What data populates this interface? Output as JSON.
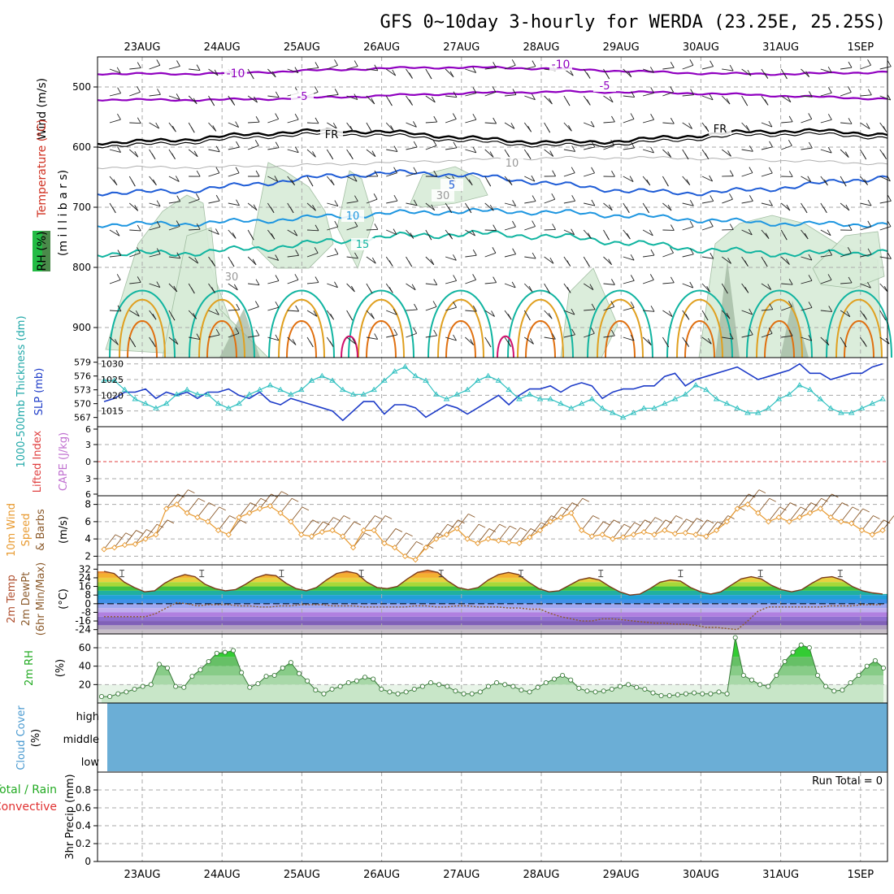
{
  "title": "GFS 0~10day 3-hourly for WERDA (23.25E, 25.25S)",
  "date_labels": [
    "23AUG",
    "24AUG",
    "25AUG",
    "26AUG",
    "27AUG",
    "28AUG",
    "29AUG",
    "30AUG",
    "31AUG",
    "1SEP"
  ],
  "colors": {
    "purple": "#9000c0",
    "black": "#000000",
    "blue": "#1e5cd6",
    "lightblue": "#1e96e0",
    "teal": "#10b4a0",
    "orange": "#e0a020",
    "darkorange": "#e07010",
    "magenta": "#d0106c",
    "rhfill": "#d8ecd8",
    "slp": "#1e3cc8",
    "thick": "#30c0c0",
    "wind10": "#e89a30",
    "cloud": "#6baed6",
    "grid": "#aaaaaa"
  },
  "chart_data": [
    {
      "panel": "upper-air",
      "type": "contour",
      "ylabel_parts": [
        "Wind (m/s)",
        "Temperature (°C)",
        "RH (%)"
      ],
      "ylabel_units": "(m i l l i b a r s)",
      "y_ticks": [
        500,
        600,
        700,
        800,
        900
      ],
      "ylim": [
        450,
        950
      ],
      "temperature_labels": [
        "-10",
        "-5",
        "FR",
        "5",
        "10",
        "15"
      ],
      "rh_labels": [
        "10",
        "30"
      ]
    },
    {
      "panel": "slp-thickness",
      "type": "line",
      "ylabel_left": "1000-500mb Thickness (dm)",
      "ylabel_right": "SLP (mb)",
      "left_ticks": [
        567,
        570,
        573,
        576,
        579
      ],
      "right_ticks": [
        1015,
        1020,
        1025,
        1030
      ],
      "series": [
        {
          "name": "SLP (mb)",
          "values": [
            1018,
            1019,
            1021,
            1021,
            1022,
            1019,
            1021,
            1020,
            1021,
            1019,
            1021,
            1021,
            1022,
            1020,
            1019,
            1021,
            1018,
            1017,
            1019,
            1018,
            1017,
            1016,
            1015,
            1012,
            1015,
            1018,
            1018,
            1014,
            1017,
            1017,
            1016,
            1013,
            1015,
            1017,
            1016,
            1014,
            1016,
            1018,
            1020,
            1017,
            1020,
            1022,
            1022,
            1023,
            1021,
            1023,
            1024,
            1023,
            1019,
            1021,
            1022,
            1022,
            1023,
            1023,
            1026,
            1027,
            1023,
            1025,
            1026,
            1027,
            1028,
            1029,
            1027,
            1025,
            1026,
            1027,
            1028,
            1030,
            1027,
            1027,
            1025,
            1026,
            1027,
            1027,
            1029,
            1030
          ]
        },
        {
          "name": "1000-500mb Thickness (dm)",
          "values": [
            575,
            575,
            573,
            571,
            570,
            569,
            570,
            572,
            573,
            572,
            572,
            570,
            569,
            570,
            572,
            573,
            574,
            573,
            572,
            573,
            575,
            576,
            575,
            573,
            572,
            572,
            573,
            575,
            577,
            578,
            576,
            575,
            572,
            571,
            572,
            573,
            575,
            576,
            575,
            573,
            571,
            572,
            571,
            571,
            570,
            569,
            570,
            571,
            569,
            568,
            567,
            568,
            569,
            569,
            570,
            571,
            572,
            574,
            573,
            571,
            570,
            569,
            568,
            568,
            569,
            571,
            572,
            574,
            573,
            571,
            569,
            568,
            568,
            569,
            570,
            571
          ]
        }
      ]
    },
    {
      "panel": "lifted-index-cape",
      "type": "line",
      "ylabel_parts": [
        "Lifted Index",
        "CAPE (J/kg)"
      ],
      "y_ticks": [
        "6",
        "3",
        "0",
        "3",
        "6"
      ]
    },
    {
      "panel": "wind10m",
      "type": "line",
      "ylabel_parts": [
        "10m Wind",
        "Speed",
        "& Barbs"
      ],
      "ylabel_units": "(m/s)",
      "y_ticks": [
        2,
        4,
        6,
        8
      ],
      "ylim": [
        1,
        9
      ],
      "series": [
        {
          "name": "Speed",
          "values": [
            2.8,
            3.0,
            3.3,
            3.4,
            4.0,
            4.5,
            7.5,
            8.0,
            7.0,
            6.5,
            6.0,
            5.0,
            4.5,
            6.5,
            7.0,
            7.5,
            7.8,
            7.0,
            6.0,
            4.5,
            4.3,
            4.8,
            5.0,
            4.3,
            3.0,
            5.0,
            5.0,
            3.5,
            3.0,
            2.0,
            1.6,
            3.0,
            4.0,
            4.5,
            5.2,
            4.0,
            3.5,
            4.0,
            3.8,
            3.6,
            3.5,
            4.2,
            5.0,
            6.0,
            6.5,
            7.0,
            5.0,
            4.3,
            4.5,
            4.0,
            4.2,
            4.5,
            4.8,
            4.5,
            5.0,
            4.6,
            4.7,
            4.5,
            4.3,
            5.0,
            6.0,
            7.5,
            8.0,
            7.0,
            6.0,
            6.5,
            6.0,
            6.5,
            7.0,
            7.5,
            6.5,
            6.0,
            5.8,
            5.0,
            4.5,
            5.0
          ]
        }
      ]
    },
    {
      "panel": "temp2m",
      "type": "area",
      "ylabel_parts": [
        "2m Temp",
        "2m DewPt",
        "(6hr Min/Max)"
      ],
      "ylabel_units": "(°C)",
      "y_ticks": [
        "32",
        "24",
        "16",
        "8",
        "0",
        "-8",
        "-16",
        "-24"
      ],
      "ylim": [
        -28,
        36
      ],
      "series": [
        {
          "name": "2m Temp",
          "values": [
            30,
            28,
            20,
            15,
            11,
            12,
            19,
            24,
            27,
            25,
            18,
            14,
            12,
            13,
            18,
            24,
            27,
            26,
            19,
            14,
            12,
            15,
            22,
            28,
            30,
            28,
            20,
            15,
            14,
            16,
            23,
            29,
            31,
            29,
            21,
            15,
            13,
            15,
            22,
            27,
            29,
            27,
            20,
            14,
            11,
            12,
            17,
            22,
            24,
            22,
            16,
            11,
            8,
            9,
            14,
            20,
            22,
            21,
            15,
            11,
            9,
            11,
            17,
            23,
            25,
            23,
            17,
            13,
            11,
            13,
            19,
            24,
            25,
            22,
            16,
            12,
            10,
            9
          ]
        },
        {
          "name": "2m DewPt",
          "values": [
            -12,
            -12,
            -12,
            -12,
            -12,
            -9,
            -4,
            1,
            0,
            -2,
            -1,
            -1,
            -1,
            -2,
            -2,
            -3,
            -3,
            -2,
            -2,
            -1,
            -1,
            -1,
            -2,
            -2,
            -2,
            -3,
            -3,
            -3,
            -3,
            -3,
            -2,
            -2,
            -3,
            -3,
            -2,
            -2,
            -3,
            -3,
            -3,
            -4,
            -4,
            -5,
            -5,
            -9,
            -12,
            -14,
            -16,
            -16,
            -14,
            -14,
            -15,
            -16,
            -17,
            -18,
            -18,
            -19,
            -19,
            -20,
            -22,
            -22,
            -23,
            -24,
            -16,
            -7,
            -3,
            -3,
            -3,
            -3,
            -3,
            -3,
            -2,
            -2,
            -2,
            -1,
            -1,
            -1
          ]
        }
      ]
    },
    {
      "panel": "rh2m",
      "type": "area",
      "ylabel": "2m RH",
      "ylabel_units": "(%)",
      "y_ticks": [
        20,
        40,
        60
      ],
      "ylim": [
        0,
        75
      ],
      "series": [
        {
          "name": "2m RH",
          "values": [
            7,
            7,
            10,
            12,
            15,
            18,
            20,
            42,
            38,
            18,
            17,
            29,
            36,
            45,
            54,
            55,
            57,
            33,
            17,
            21,
            29,
            30,
            38,
            44,
            32,
            24,
            14,
            10,
            15,
            18,
            22,
            24,
            28,
            26,
            15,
            12,
            10,
            12,
            15,
            18,
            22,
            20,
            18,
            13,
            10,
            10,
            12,
            18,
            22,
            20,
            18,
            14,
            12,
            17,
            22,
            26,
            30,
            25,
            16,
            13,
            12,
            13,
            15,
            18,
            20,
            17,
            15,
            11,
            8,
            8,
            9,
            10,
            11,
            10,
            10,
            12,
            10,
            71,
            30,
            25,
            20,
            18,
            30,
            45,
            55,
            63,
            60,
            30,
            18,
            13,
            14,
            22,
            30,
            40,
            46,
            38
          ]
        }
      ]
    },
    {
      "panel": "cloud-cover",
      "type": "area",
      "ylabel": "Cloud Cover",
      "ylabel_units": "(%)",
      "levels": [
        "high",
        "middle",
        "low"
      ]
    },
    {
      "panel": "precip",
      "type": "bar",
      "ylabel_parts": [
        "Total / Rain",
        "Convective"
      ],
      "ylabel_units": "3hr Precip (mm)",
      "y_ticks": [
        "0",
        "0.2",
        "0.4",
        "0.6",
        "0.8"
      ],
      "ylim": [
        0,
        1
      ],
      "run_total_label": "Run Total = 0"
    }
  ]
}
